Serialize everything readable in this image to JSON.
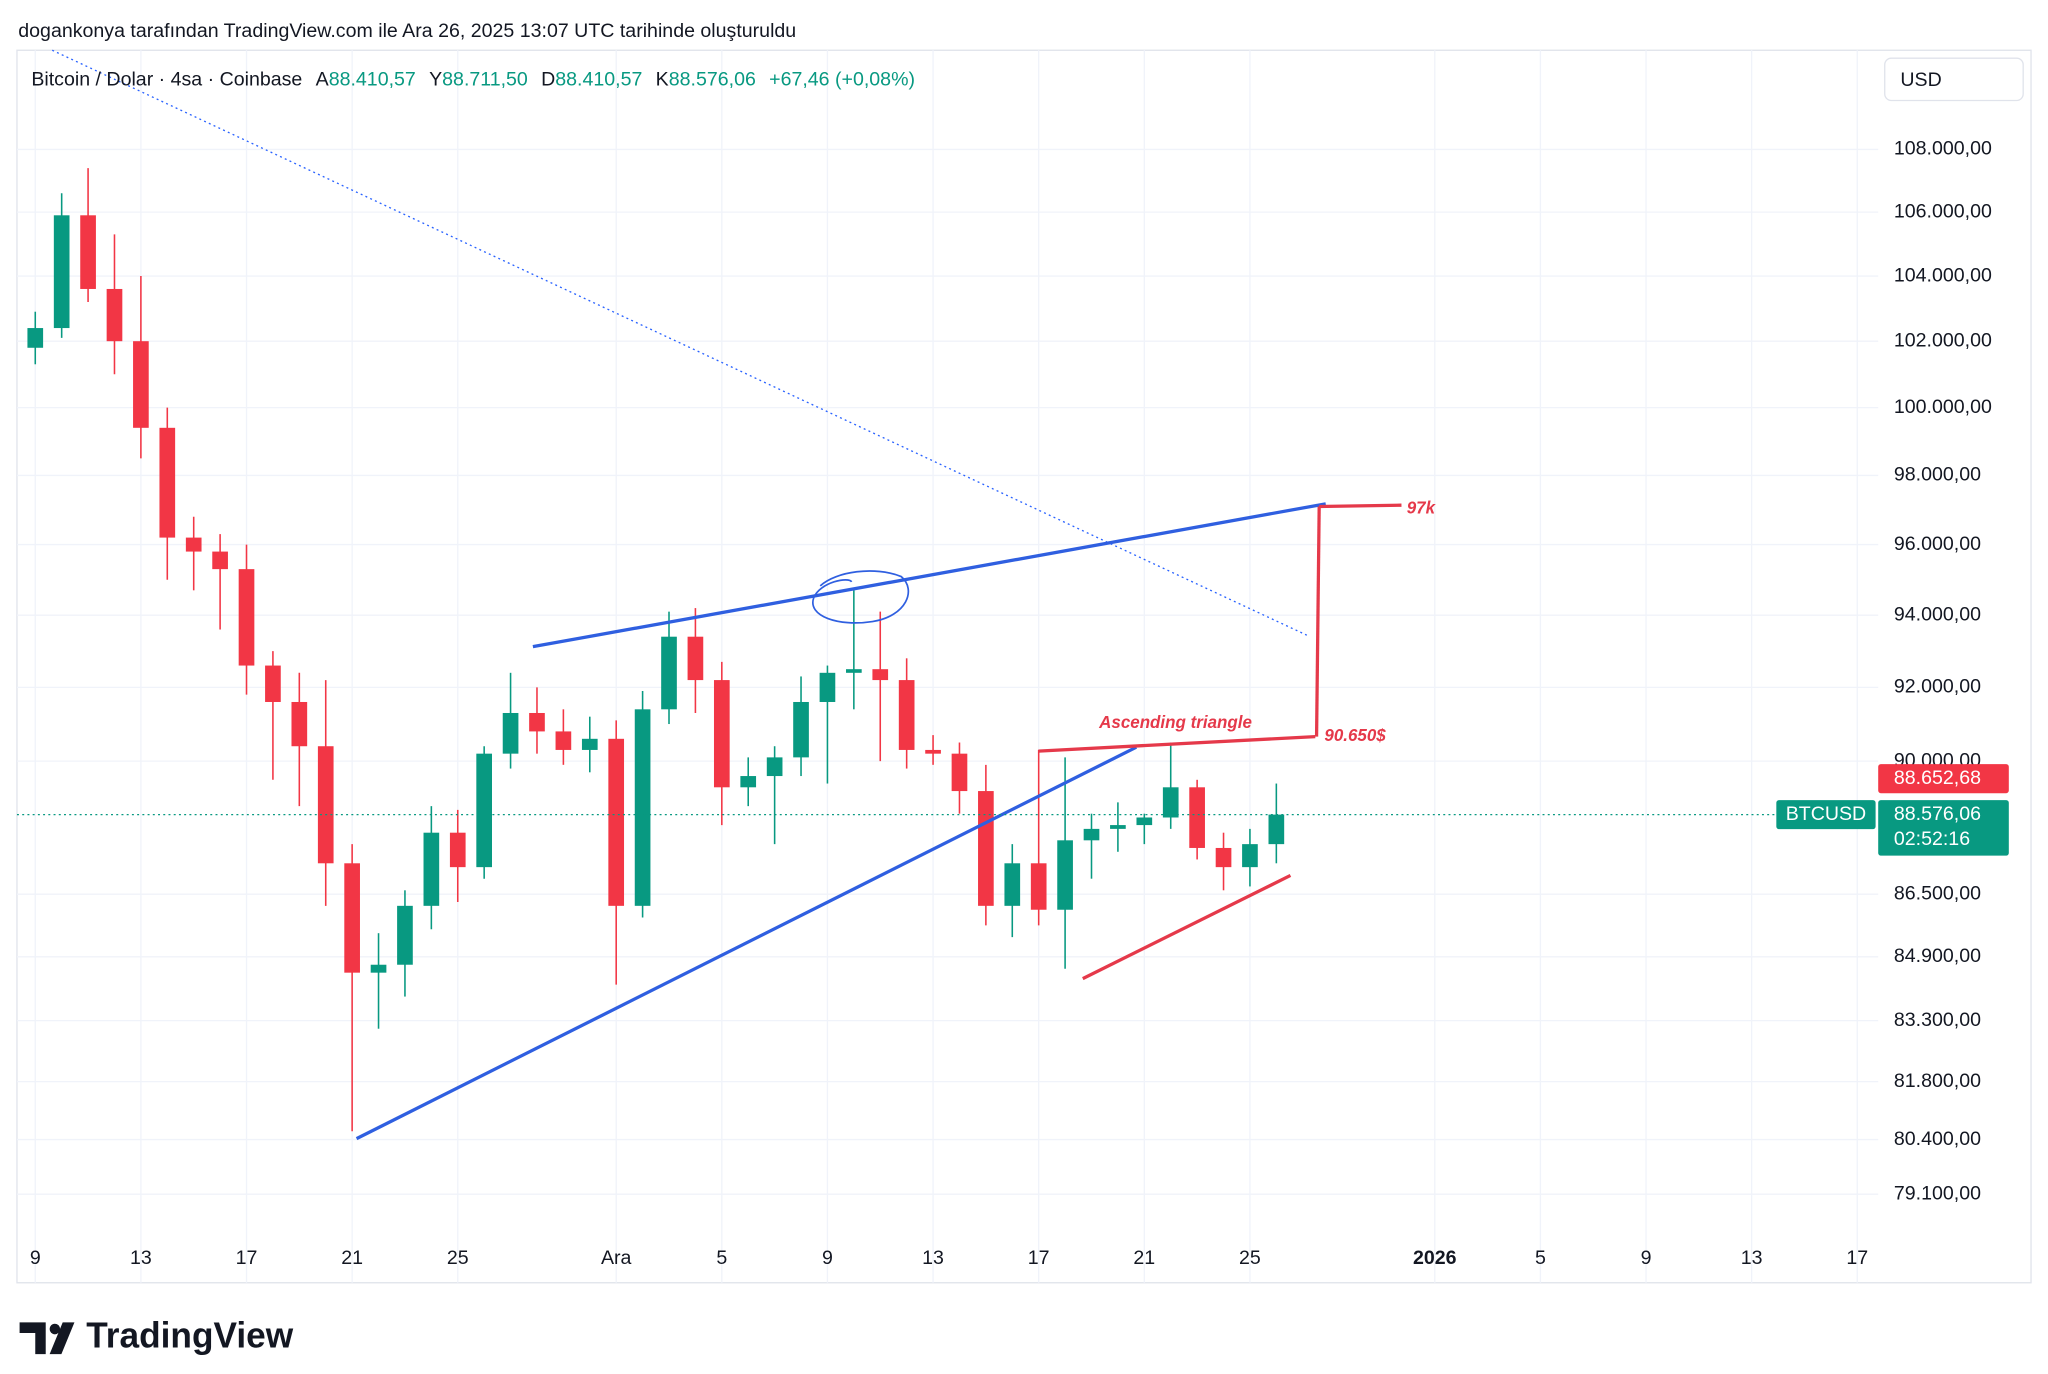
{
  "header": {
    "caption": "dogankonya tarafından TradingView.com ile Ara 26, 2025 13:07 UTC tarihinde oluşturuldu"
  },
  "chart_data": {
    "type": "candlestick",
    "symbol_info": "Bitcoin / Dolar · 4sa · Coinbase",
    "ohlc_legend": [
      {
        "key": "A",
        "value": "88.410,57"
      },
      {
        "key": "Y",
        "value": "88.711,50"
      },
      {
        "key": "D",
        "value": "88.410,57"
      },
      {
        "key": "K",
        "value": "88.576,06"
      }
    ],
    "change": "+67,46 (+0,08%)",
    "currency": "USD",
    "symbol": "BTCUSD",
    "categories": [
      "9",
      null,
      null,
      null,
      "13",
      null,
      null,
      null,
      "17",
      null,
      null,
      null,
      "21",
      null,
      null,
      null,
      "25",
      null,
      null,
      null,
      null,
      null,
      "Ara",
      null,
      null,
      null,
      "5",
      null,
      null,
      null,
      "9",
      null,
      null,
      null,
      "13",
      null,
      null,
      null,
      "17",
      null,
      null,
      null,
      "21",
      null,
      null,
      null,
      "25",
      null,
      null,
      null,
      null,
      null,
      null,
      "2026",
      null,
      null,
      null,
      "5",
      null,
      null,
      null,
      "9",
      null,
      null,
      null,
      "13",
      null,
      null,
      null,
      "17"
    ],
    "open": [
      101800,
      102400,
      105900,
      103600,
      102000,
      99400,
      96200,
      95800,
      95300,
      92600,
      91600,
      90400,
      87300,
      84500,
      84700,
      86200,
      88100,
      87200,
      90200,
      91300,
      90800,
      90300,
      90600,
      86200,
      91400,
      93400,
      92200,
      89300,
      89600,
      90100,
      91600,
      92400,
      92500,
      92200,
      90300,
      90200,
      89200,
      86200,
      87300,
      86100,
      87900,
      88200,
      88300,
      88500,
      89300,
      87700,
      87200,
      87800,
      null,
      null,
      null,
      null,
      null,
      null,
      null,
      null,
      null,
      null,
      null,
      null,
      null,
      null,
      null,
      null,
      null,
      null,
      null,
      null,
      null,
      null
    ],
    "high": [
      102900,
      106600,
      107400,
      105300,
      104000,
      100000,
      96800,
      96300,
      96000,
      93000,
      92400,
      92200,
      87800,
      85500,
      86600,
      88800,
      88700,
      90400,
      92400,
      92000,
      91400,
      91200,
      91100,
      91900,
      94100,
      94200,
      92700,
      90100,
      90400,
      92300,
      92600,
      94700,
      94100,
      92800,
      90700,
      90500,
      89900,
      87800,
      90300,
      90100,
      88600,
      88900,
      88600,
      90500,
      89500,
      88100,
      88200,
      89400,
      null,
      null,
      null,
      null,
      null,
      null,
      null,
      null,
      null,
      null,
      null,
      null,
      null,
      null,
      null,
      null,
      null,
      null,
      null,
      null,
      null,
      null
    ],
    "low": [
      101300,
      102100,
      103200,
      101000,
      98500,
      95000,
      94700,
      93600,
      91800,
      89500,
      88800,
      86200,
      80600,
      83100,
      83900,
      85600,
      86300,
      86900,
      89800,
      90200,
      89900,
      89700,
      84200,
      85900,
      91000,
      91300,
      88300,
      88800,
      87800,
      89600,
      89400,
      91400,
      90000,
      89800,
      89900,
      88600,
      85700,
      85400,
      85700,
      84600,
      86900,
      87600,
      87800,
      88200,
      87400,
      86600,
      86700,
      87300,
      null,
      null,
      null,
      null,
      null,
      null,
      null,
      null,
      null,
      null,
      null,
      null,
      null,
      null,
      null,
      null,
      null,
      null,
      null,
      null,
      null,
      null
    ],
    "close": [
      102400,
      105900,
      103600,
      102000,
      99400,
      96200,
      95800,
      95300,
      92600,
      91600,
      90400,
      87300,
      84500,
      84700,
      86200,
      88100,
      87200,
      90200,
      91300,
      90800,
      90300,
      90600,
      86200,
      91400,
      93400,
      92200,
      89300,
      89600,
      90100,
      91600,
      92400,
      92500,
      92200,
      90300,
      90200,
      89200,
      86200,
      87300,
      86100,
      87900,
      88200,
      88300,
      88500,
      89300,
      87700,
      87200,
      87800,
      88576.06,
      null,
      null,
      null,
      null,
      null,
      null,
      null,
      null,
      null,
      null,
      null,
      null,
      null,
      null,
      null,
      null,
      null,
      null,
      null,
      null,
      null,
      null
    ],
    "up_color": "#089981",
    "down_color": "#f23645",
    "log_scale": true,
    "grid": true,
    "ylim": [
      77040,
      111240
    ],
    "yticks": [
      {
        "value": 108000,
        "label": "108.000,00"
      },
      {
        "value": 106000,
        "label": "106.000,00"
      },
      {
        "value": 104000,
        "label": "104.000,00"
      },
      {
        "value": 102000,
        "label": "102.000,00"
      },
      {
        "value": 100000,
        "label": "100.000,00"
      },
      {
        "value": 98000,
        "label": "98.000,00"
      },
      {
        "value": 96000,
        "label": "96.000,00"
      },
      {
        "value": 94000,
        "label": "94.000,00"
      },
      {
        "value": 92000,
        "label": "92.000,00"
      },
      {
        "value": 90000,
        "label": "90.000,00"
      },
      {
        "value": 86500,
        "label": "86.500,00"
      },
      {
        "value": 84900,
        "label": "84.900,00"
      },
      {
        "value": 83300,
        "label": "83.300,00"
      },
      {
        "value": 81800,
        "label": "81.800,00"
      },
      {
        "value": 80400,
        "label": "80.400,00"
      },
      {
        "value": 79100,
        "label": "79.100,00"
      }
    ],
    "price_marker": {
      "value": 88652.68,
      "label": "88.652,68"
    },
    "last_price": {
      "value": 88576.06,
      "label": "88.576,06"
    },
    "countdown": "02:52:16",
    "annotations": [
      {
        "text": "Ascending triangle"
      },
      {
        "text": "90.650$"
      },
      {
        "text": "97k"
      }
    ]
  },
  "footer": {
    "logo": "TradingView"
  }
}
